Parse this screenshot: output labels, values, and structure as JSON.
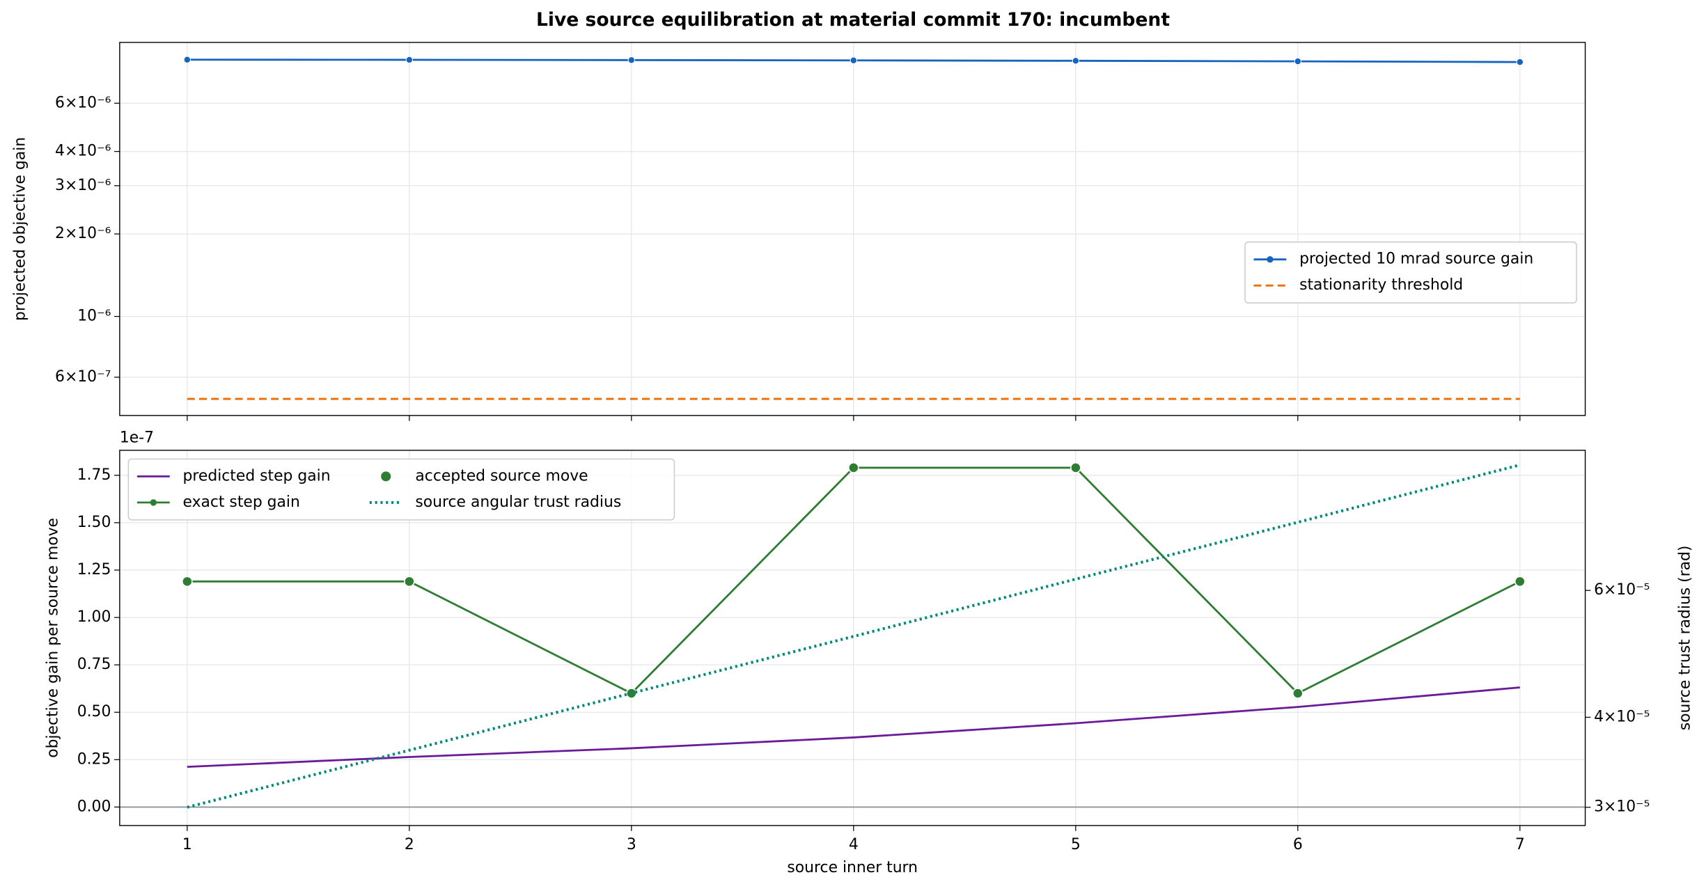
{
  "title": "Live source equilibration at material commit 170: incumbent",
  "chart_data": [
    {
      "type": "line",
      "yscale": "log",
      "ylabel": "projected objective gain",
      "x": [
        1,
        2,
        3,
        4,
        5,
        6,
        7
      ],
      "xlim": [
        0.696,
        7.294
      ],
      "xticks": [
        1,
        2,
        3,
        4,
        5,
        6,
        7
      ],
      "show_xticklabels": false,
      "ylim": [
        4.35e-07,
        1e-05
      ],
      "yticks": [
        {
          "value": 6e-07,
          "label": "6×10⁻⁷"
        },
        {
          "value": 1e-06,
          "label": "10⁻⁶"
        },
        {
          "value": 2e-06,
          "label": "2×10⁻⁶"
        },
        {
          "value": 3e-06,
          "label": "3×10⁻⁶"
        },
        {
          "value": 4e-06,
          "label": "4×10⁻⁶"
        },
        {
          "value": 6e-06,
          "label": "6×10⁻⁶"
        }
      ],
      "grid": true,
      "legend": "center right",
      "series": [
        {
          "name": "projected 10 mrad source gain",
          "color": "#1565c0",
          "style": "solid",
          "marker": true,
          "values": [
            8.65e-06,
            8.64e-06,
            8.62e-06,
            8.6e-06,
            8.57e-06,
            8.53e-06,
            8.48e-06
          ]
        },
        {
          "name": "stationarity threshold",
          "color": "#ef6c00",
          "style": "dashed",
          "marker": false,
          "values": [
            5e-07,
            5e-07,
            5e-07,
            5e-07,
            5e-07,
            5e-07,
            5e-07
          ]
        }
      ]
    },
    {
      "type": "line",
      "yscale": "linear",
      "ylabel": "objective gain per source move",
      "y2label": "source trust radius (rad)",
      "xlabel": "source inner turn",
      "offset_label": "1e-7",
      "x": [
        1,
        2,
        3,
        4,
        5,
        6,
        7
      ],
      "xlim": [
        0.696,
        7.294
      ],
      "xticks": [
        1,
        2,
        3,
        4,
        5,
        6,
        7
      ],
      "show_xticklabels": true,
      "ylim": [
        -0.0975,
        1.882
      ],
      "yticks": [
        {
          "value": 0,
          "label": "0.00"
        },
        0.25,
        {
          "value": 0.5,
          "label": "0.50"
        },
        0.75,
        {
          "value": 1,
          "label": "1.00"
        },
        1.25,
        {
          "value": 1.5,
          "label": "1.50"
        },
        1.75
      ],
      "y2scale": "log",
      "y2lim": [
        2.83e-05,
        9.39e-05
      ],
      "y2ticks": [
        {
          "value": 3e-05,
          "label": "3×10⁻⁵"
        },
        {
          "value": 4e-05,
          "label": "4×10⁻⁵"
        },
        {
          "value": 6e-05,
          "label": "6×10⁻⁵"
        }
      ],
      "grid": true,
      "zero_line": true,
      "legend": "upper left",
      "legend_columns": 2,
      "series": [
        {
          "name": "predicted step gain",
          "color": "#6a1b9a",
          "style": "solid",
          "marker": false,
          "values": [
            0.212,
            0.264,
            0.31,
            0.367,
            0.442,
            0.528,
            0.631
          ]
        },
        {
          "name": "exact step gain",
          "color": "#2e7d32",
          "style": "solid",
          "marker": true,
          "values": [
            1.19,
            1.19,
            0.6,
            1.79,
            1.79,
            0.6,
            1.19
          ]
        },
        {
          "name": "accepted source move",
          "color": "#2e7d32",
          "style": "scatter",
          "marker": true,
          "values": [
            1.19,
            1.19,
            0.6,
            1.79,
            1.79,
            0.6,
            1.19
          ]
        },
        {
          "name": "source angular trust radius",
          "color": "#00897b",
          "style": "dotted",
          "marker": false,
          "axis": "y2",
          "values": [
            3e-05,
            3.6e-05,
            4.32e-05,
            5.18e-05,
            6.22e-05,
            7.46e-05,
            8.96e-05
          ]
        }
      ]
    }
  ]
}
